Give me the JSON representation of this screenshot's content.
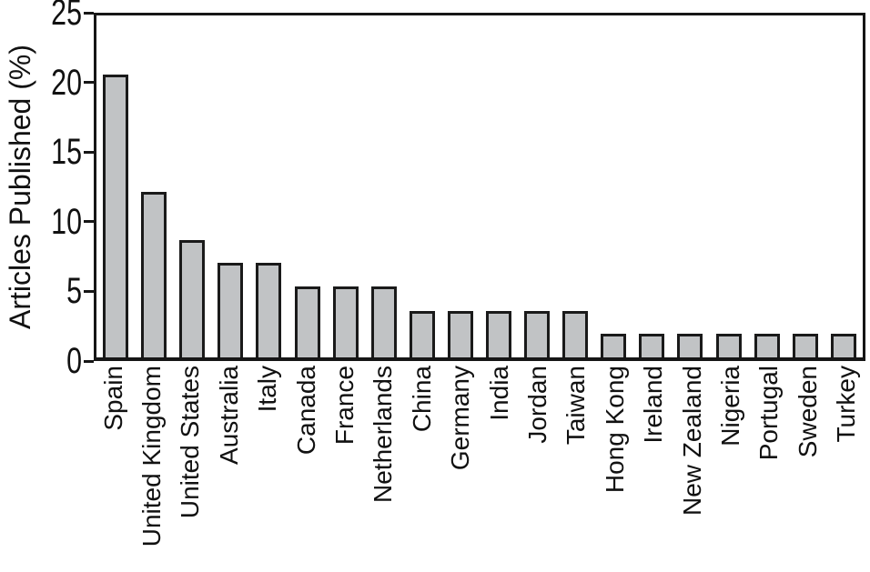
{
  "figure": {
    "background_color": "#ffffff",
    "text_color": "#111111",
    "axis_color": "#161616"
  },
  "chart_data": {
    "type": "bar",
    "title": "",
    "xlabel": "",
    "ylabel": "Articles Published (%)",
    "categories": [
      "Spain",
      "United Kingdom",
      "United States",
      "Australia",
      "Italy",
      "Canada",
      "France",
      "Netherlands",
      "China",
      "Germany",
      "India",
      "Jordan",
      "Taiwan",
      "Hong Kong",
      "Ireland",
      "New Zealand",
      "Nigeria",
      "Portugal",
      "Sweden",
      "Turkey"
    ],
    "values": [
      20.7,
      12.1,
      8.6,
      6.9,
      6.9,
      5.2,
      5.2,
      5.2,
      3.4,
      3.4,
      3.4,
      3.4,
      3.4,
      1.7,
      1.7,
      1.7,
      1.7,
      1.7,
      1.7,
      1.7
    ],
    "ylim": [
      0,
      25
    ],
    "yticks": [
      0,
      5,
      10,
      15,
      20,
      25
    ],
    "grid": false,
    "frame": "full-box",
    "legend": "none",
    "bar_color": "#c1c3c5",
    "bar_border_color": "#1a1a1a",
    "x_tick_label_rotation_deg": 90
  }
}
